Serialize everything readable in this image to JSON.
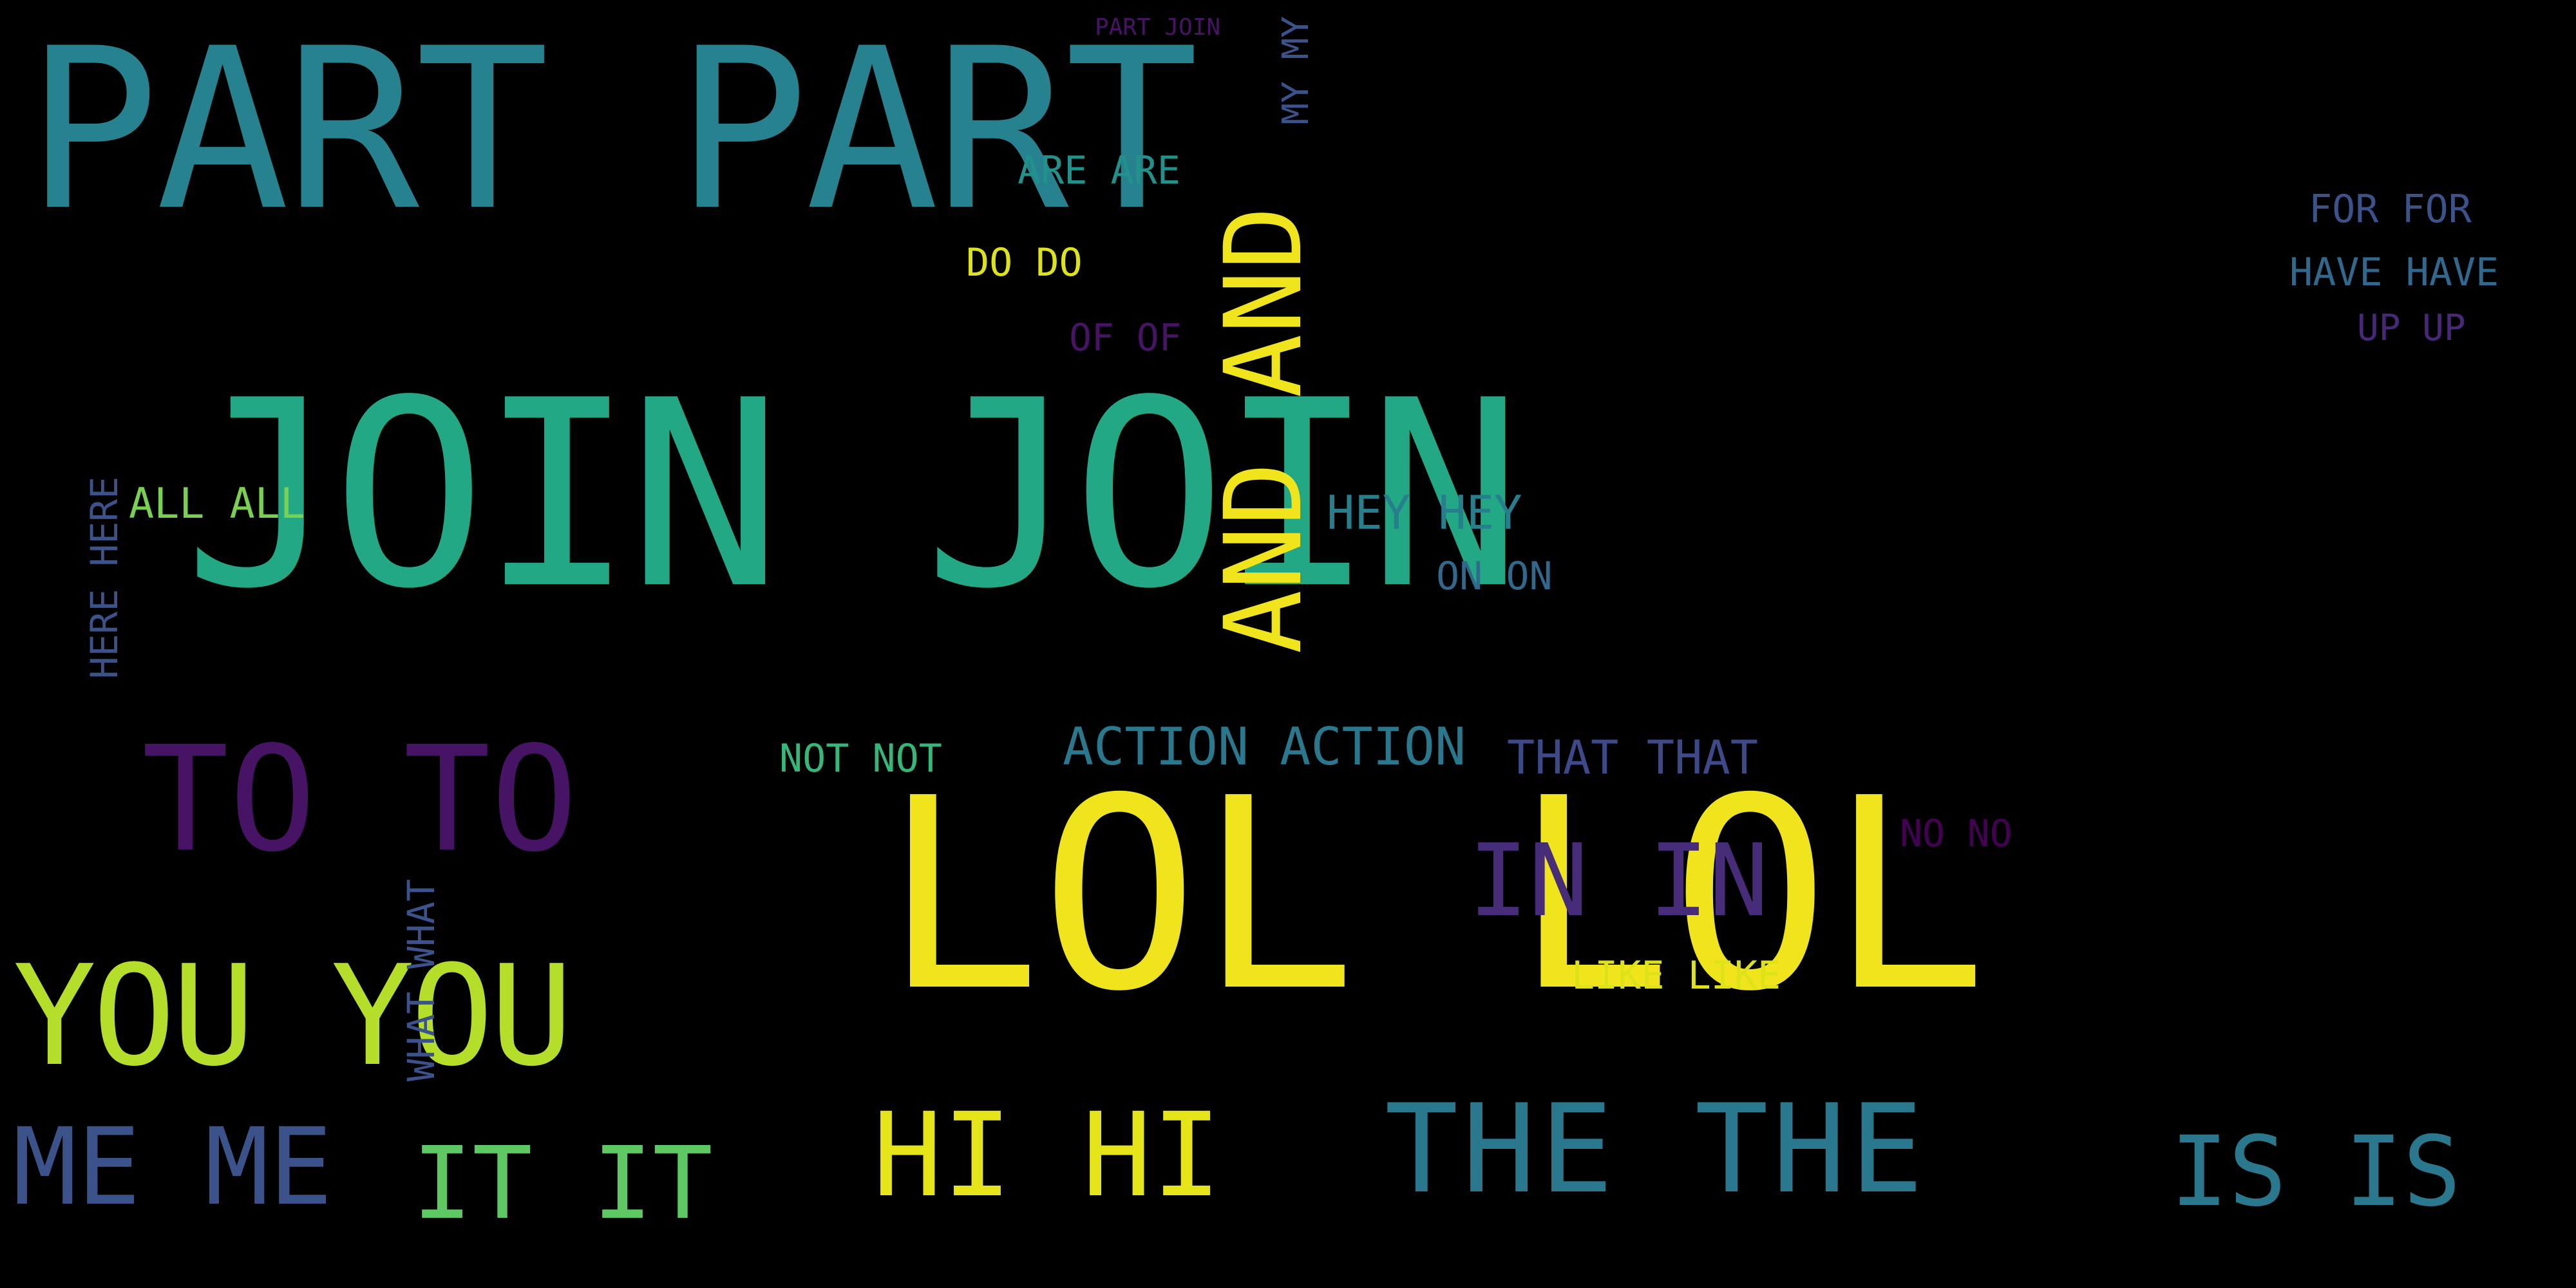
{
  "colors": {
    "background": "#000000",
    "teal": "#26828e",
    "green_teal": "#22a884",
    "yellow": "#f0e51c",
    "lime": "#b5de2b",
    "green": "#5ec962",
    "purple": "#471365",
    "dark_purple": "#440154",
    "indigo": "#472c7a",
    "blue": "#3b528b",
    "slate": "#31688e",
    "cyan": "#1f9e89"
  },
  "words": [
    {
      "id": "part-1",
      "text": "PART PART",
      "color": "#26828e"
    },
    {
      "id": "join-1",
      "text": "JOIN JOIN",
      "color": "#22a884"
    },
    {
      "id": "lol-1",
      "text": "LOL LOL",
      "color": "#f0e51c"
    },
    {
      "id": "you-1",
      "text": "YOU YOU",
      "color": "#b5de2b"
    },
    {
      "id": "to-1",
      "text": "TO TO",
      "color": "#471365"
    },
    {
      "id": "and-1",
      "text": "AND AND",
      "color": "#f0e51c"
    },
    {
      "id": "the-1",
      "text": "THE THE",
      "color": "#2a788e"
    },
    {
      "id": "hi-1",
      "text": "HI HI",
      "color": "#e4e419"
    },
    {
      "id": "me-1",
      "text": "ME ME",
      "color": "#3b528b"
    },
    {
      "id": "is-1",
      "text": "IS IS",
      "color": "#2a788e"
    },
    {
      "id": "it-1",
      "text": "IT IT",
      "color": "#5ec962"
    },
    {
      "id": "in-1",
      "text": "IN IN",
      "color": "#472c7a"
    },
    {
      "id": "action-1",
      "text": "ACTION ACTION",
      "color": "#2a788e"
    },
    {
      "id": "that-1",
      "text": "THAT THAT",
      "color": "#3e4989"
    },
    {
      "id": "hey-1",
      "text": "HEY HEY",
      "color": "#277f8e"
    },
    {
      "id": "on-1",
      "text": "ON ON",
      "color": "#31688e"
    },
    {
      "id": "all-1",
      "text": "ALL ALL",
      "color": "#7ad151"
    },
    {
      "id": "here-1",
      "text": "HERE HERE",
      "color": "#3b528b"
    },
    {
      "id": "what-1",
      "text": "WHAT WHAT",
      "color": "#3b528b"
    },
    {
      "id": "not-1",
      "text": "NOT NOT",
      "color": "#35b779"
    },
    {
      "id": "like-1",
      "text": "LIKE LIKE",
      "color": "#dde318"
    },
    {
      "id": "no-1",
      "text": "NO NO",
      "color": "#440154"
    },
    {
      "id": "are-1",
      "text": "ARE ARE",
      "color": "#21918c"
    },
    {
      "id": "do-1",
      "text": "DO DO",
      "color": "#dde318"
    },
    {
      "id": "of-1",
      "text": "OF OF",
      "color": "#471365"
    },
    {
      "id": "my-1",
      "text": "MY MY",
      "color": "#3b528b"
    },
    {
      "id": "part-join-1",
      "text": "PART JOIN",
      "color": "#471365"
    },
    {
      "id": "for-1",
      "text": "FOR FOR",
      "color": "#3b528b"
    },
    {
      "id": "have-1",
      "text": "HAVE HAVE",
      "color": "#31688e"
    },
    {
      "id": "up-1",
      "text": "UP UP",
      "color": "#482878"
    }
  ]
}
